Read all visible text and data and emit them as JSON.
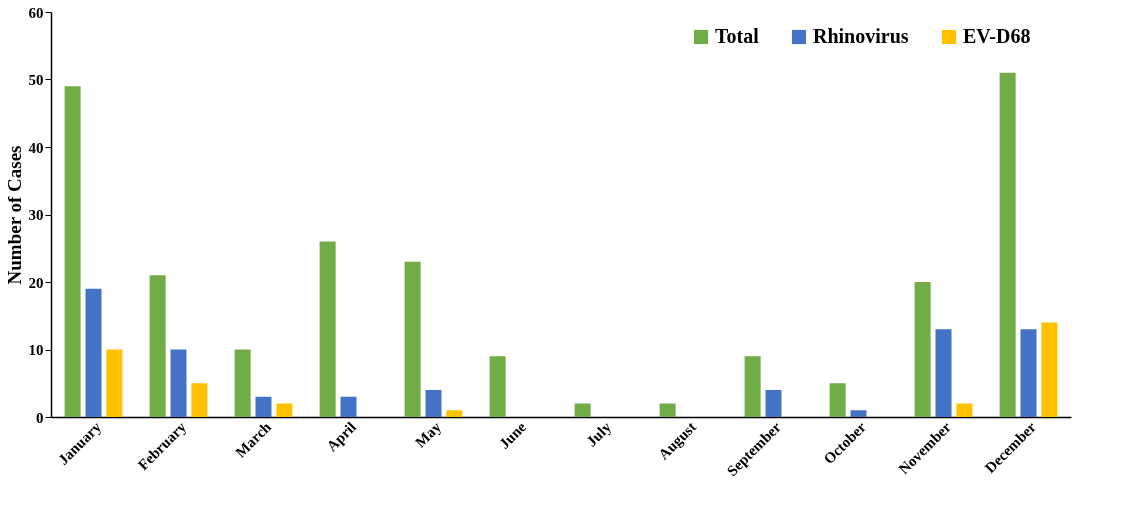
{
  "chart_data": {
    "type": "bar",
    "ylabel": "Number of Cases",
    "categories": [
      "January",
      "February",
      "March",
      "April",
      "May",
      "June",
      "July",
      "August",
      "September",
      "October",
      "November",
      "December"
    ],
    "series": [
      {
        "name": "Total",
        "color": "#70ad47",
        "values": [
          49,
          21,
          10,
          26,
          23,
          9,
          2,
          2,
          9,
          5,
          20,
          51
        ]
      },
      {
        "name": "Rhinovirus",
        "color": "#4472c4",
        "values": [
          19,
          10,
          3,
          3,
          4,
          0,
          0,
          0,
          4,
          1,
          13,
          13
        ]
      },
      {
        "name": "EV-D68",
        "color": "#ffc000",
        "values": [
          10,
          5,
          2,
          0,
          1,
          0,
          0,
          0,
          0,
          0,
          2,
          14
        ]
      }
    ],
    "ylim": [
      0,
      60
    ],
    "yticks": [
      0,
      10,
      20,
      30,
      40,
      50,
      60
    ],
    "grid": false,
    "legend": "top right"
  }
}
